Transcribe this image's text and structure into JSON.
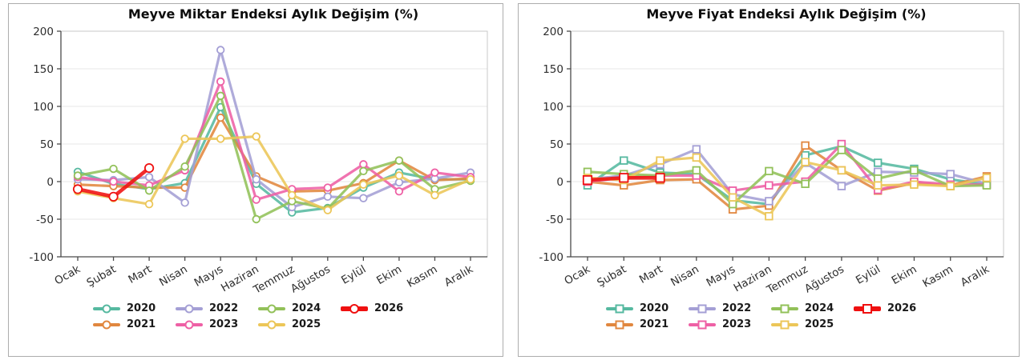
{
  "page": {
    "background": "#ffffff"
  },
  "chart_data": [
    {
      "type": "line",
      "title": "Meyve Miktar Endeksi Aylık Değişim (%)",
      "marker": "circle",
      "categories": [
        "Ocak",
        "Şubat",
        "Mart",
        "Nisan",
        "Mayıs",
        "Haziran",
        "Temmuz",
        "Ağustos",
        "Eylül",
        "Ekim",
        "Kasım",
        "Aralık"
      ],
      "yticks": [
        200,
        150,
        100,
        50,
        0,
        -50,
        -100
      ],
      "ylim": [
        -100,
        200
      ],
      "grid": true,
      "legend_position": "bottom",
      "series": [
        {
          "name": "2020",
          "color": "#56b9a0",
          "linewidth": 3.2,
          "values": [
            13,
            -3,
            -10,
            -2,
            99,
            -3,
            -41,
            -35,
            -8,
            12,
            3,
            3
          ]
        },
        {
          "name": "2021",
          "color": "#e1873f",
          "linewidth": 3.2,
          "values": [
            -4,
            -6,
            -8,
            -8,
            85,
            7,
            -13,
            -12,
            -2,
            28,
            2,
            4
          ]
        },
        {
          "name": "2022",
          "color": "#a49fd5",
          "linewidth": 3.2,
          "values": [
            3,
            2,
            6,
            -28,
            175,
            3,
            -34,
            -20,
            -22,
            -1,
            4,
            12
          ]
        },
        {
          "name": "2023",
          "color": "#ee60a5",
          "linewidth": 3.2,
          "values": [
            6,
            0,
            -5,
            15,
            133,
            -24,
            -10,
            -8,
            23,
            -13,
            12,
            6
          ]
        },
        {
          "name": "2024",
          "color": "#92c159",
          "linewidth": 3.2,
          "values": [
            8,
            17,
            -12,
            20,
            114,
            -50,
            -26,
            -36,
            14,
            28,
            -10,
            1
          ]
        },
        {
          "name": "2025",
          "color": "#ecc658",
          "linewidth": 3.2,
          "values": [
            -13,
            -22,
            -30,
            57,
            57,
            60,
            -18,
            -38,
            -4,
            8,
            -18,
            3
          ]
        },
        {
          "name": "2026",
          "color": "#ef1010",
          "linewidth": 4.6,
          "values": [
            -10,
            -20,
            18,
            null,
            null,
            null,
            null,
            null,
            null,
            null,
            null,
            null
          ]
        }
      ]
    },
    {
      "type": "line",
      "title": "Meyve Fiyat Endeksi Aylık Değişim (%)",
      "marker": "square",
      "categories": [
        "Ocak",
        "Şubat",
        "Mart",
        "Nisan",
        "Mayıs",
        "Haziran",
        "Temmuz",
        "Ağustos",
        "Eylül",
        "Ekim",
        "Kasım",
        "Aralık"
      ],
      "yticks": [
        200,
        150,
        100,
        50,
        0,
        -50,
        -100
      ],
      "ylim": [
        -100,
        200
      ],
      "grid": true,
      "legend_position": "bottom",
      "series": [
        {
          "name": "2020",
          "color": "#56b9a0",
          "linewidth": 3.2,
          "values": [
            -5,
            28,
            12,
            10,
            -25,
            -30,
            35,
            47,
            25,
            17,
            3,
            -4
          ]
        },
        {
          "name": "2021",
          "color": "#e1873f",
          "linewidth": 3.2,
          "values": [
            0,
            -5,
            2,
            3,
            -37,
            -32,
            48,
            15,
            -12,
            -2,
            -5,
            7
          ]
        },
        {
          "name": "2022",
          "color": "#a49fd5",
          "linewidth": 3.2,
          "values": [
            3,
            8,
            23,
            43,
            -17,
            -26,
            25,
            -6,
            13,
            12,
            10,
            -3
          ]
        },
        {
          "name": "2023",
          "color": "#ee60a5",
          "linewidth": 3.2,
          "values": [
            0,
            5,
            8,
            8,
            -12,
            -5,
            0,
            50,
            -11,
            0,
            -4,
            -4
          ]
        },
        {
          "name": "2024",
          "color": "#92c159",
          "linewidth": 3.2,
          "values": [
            13,
            10,
            8,
            15,
            -30,
            14,
            -3,
            42,
            4,
            15,
            -6,
            -5
          ]
        },
        {
          "name": "2025",
          "color": "#ecc658",
          "linewidth": 3.2,
          "values": [
            5,
            2,
            28,
            32,
            -21,
            -46,
            26,
            15,
            -5,
            -4,
            -6,
            5
          ]
        },
        {
          "name": "2026",
          "color": "#ef1010",
          "linewidth": 4.6,
          "values": [
            2,
            5,
            5,
            null,
            null,
            null,
            null,
            null,
            null,
            null,
            null,
            null
          ]
        }
      ]
    }
  ],
  "style": {
    "grid_color": "#e7e7e7",
    "box_color": "#c9c9c9",
    "spine_color": "#4a4a4a",
    "tick_label_color": "#2e2e2e",
    "marker_fill": "#ffffff"
  }
}
